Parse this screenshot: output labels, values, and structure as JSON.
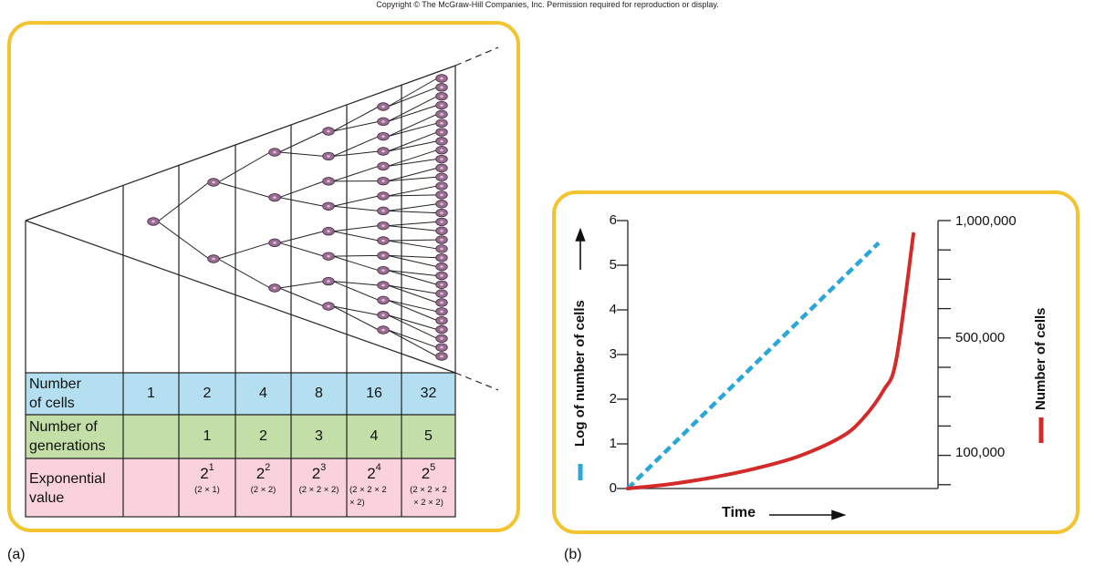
{
  "copyright": "Copyright © The McGraw-Hill Companies, Inc. Permission required for reproduction or display.",
  "panel_a": {
    "label": "(a)",
    "rows": {
      "cells": {
        "label": [
          "Number",
          "of cells"
        ],
        "values": [
          "1",
          "2",
          "4",
          "8",
          "16",
          "32"
        ],
        "color": "#b3dff0"
      },
      "generations": {
        "label": [
          "Number of",
          "generations"
        ],
        "values": [
          "",
          "1",
          "2",
          "3",
          "4",
          "5"
        ],
        "color": "#c3dea6"
      },
      "exponential": {
        "label": [
          "Exponential",
          "value"
        ],
        "color": "#f9d2dc",
        "values": [
          {
            "base": "",
            "exp": "",
            "sub": []
          },
          {
            "base": "2",
            "exp": "1",
            "sub": [
              "(2 × 1)"
            ]
          },
          {
            "base": "2",
            "exp": "2",
            "sub": [
              "(2 × 2)"
            ]
          },
          {
            "base": "2",
            "exp": "3",
            "sub": [
              "(2 × 2 × 2)"
            ]
          },
          {
            "base": "2",
            "exp": "4",
            "sub": [
              "(2 × 2 × 2",
              "× 2)"
            ]
          },
          {
            "base": "2",
            "exp": "5",
            "sub": [
              "(2 × 2 × 2",
              "× 2 × 2)"
            ]
          }
        ]
      }
    },
    "cell_color": "#9b6c93"
  },
  "panel_b": {
    "label": "(b)",
    "left_axis": {
      "label": "Log of number of cells",
      "ticks": [
        "0",
        "1",
        "2",
        "3",
        "4",
        "5",
        "6"
      ]
    },
    "right_axis": {
      "label": "Number of cells",
      "ticks": [
        "100,000",
        "500,000",
        "1,000,000"
      ]
    },
    "x_axis": {
      "label": "Time"
    },
    "colors": {
      "log_series": "#2aa7d9",
      "linear_series": "#d42a2a"
    }
  },
  "chart_data": {
    "type": "line",
    "title": "",
    "xlabel": "Time",
    "ylabel": "Log of number of cells",
    "y2label": "Number of cells",
    "ylim": [
      0,
      6
    ],
    "x_ticks": [],
    "left_ticks": [
      0,
      1,
      2,
      3,
      4,
      5,
      6
    ],
    "right_tick_labels": [
      "100,000",
      "500,000",
      "1,000,000"
    ],
    "series": [
      {
        "axis": "left",
        "style": "dashed",
        "color": "#2aa7d9",
        "x": [
          0,
          1,
          2,
          3,
          4,
          5,
          6
        ],
        "y": [
          0,
          0.92,
          1.83,
          2.75,
          3.67,
          4.58,
          5.5
        ]
      },
      {
        "axis": "right",
        "style": "solid",
        "color": "#d42a2a",
        "x": [
          0,
          1,
          2,
          3,
          4,
          5,
          5.5,
          6,
          6.3,
          6.7
        ],
        "y": [
          0,
          0.1,
          0.25,
          0.45,
          0.72,
          1.15,
          1.55,
          2.2,
          2.9,
          5.7
        ]
      }
    ]
  }
}
